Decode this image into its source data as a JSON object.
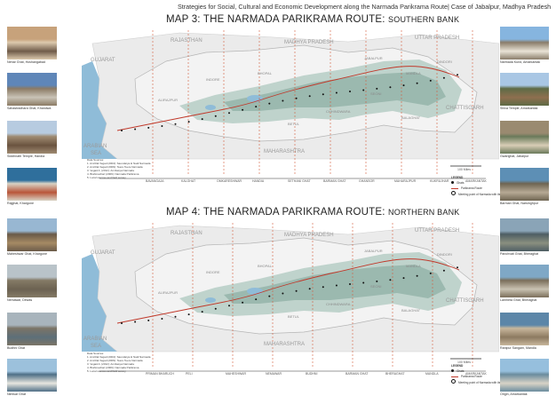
{
  "header": "Strategies for Social, Cultural and Economic Development along the Narmada Parikrama Route| Case of Jabalpur, Madhya Pradesh",
  "maps": [
    {
      "title_main": "MAP 3: THE NARMADA PARIKRAMA ROUTE:",
      "title_sub": "SOUTHERN BANK",
      "states": {
        "rajasthan": "RAJASTHAN",
        "gujarat": "GUJARAT",
        "mp": "MADHYA PRADESH",
        "up": "UTTAR PRADESH",
        "maharashtra": "MAHARASHTRA",
        "chattisgarh": "CHATTISGARH",
        "arabian": "ARABIAN",
        "sea": "SEA"
      },
      "cities": {
        "indore": "INDORE",
        "alirajpur": "ALIRAJPUR",
        "chhindwara": "CHHINDWARA",
        "betul": "BETUL",
        "seoni": "SEONI",
        "balaghat": "BALAGHAT",
        "mandla": "MANDLA",
        "dindori": "DINDORI",
        "bhopal": "BHOPAL",
        "jabalpur": "JABALPUR"
      },
      "ghats": [
        "BAVANGAJA",
        "KALGHAT",
        "OMKARESHWAR",
        "HANDIA",
        "SETHANI GHAT",
        "BARMAN GHAT",
        "GHANSOR",
        "MAHARAJPUR",
        "KUKRUJHAR",
        "AMARKANTAK"
      ],
      "scale": "100 Miles",
      "legend": {
        "title": "LEGEND",
        "ghats": "Ghats",
        "route": "Parikrama Route",
        "meeting": "Meeting point of Narmada with its tributary"
      },
      "notes_title": "Data Sources:",
      "notes": [
        "1. Amritlal Vegad (2004): Saundarya ki Nadi Narmada",
        "2. Amritlal Vegad (2009): Teere Teere Narmada",
        "3. Vegad A. (2012): Amritasya Narmada",
        "4. Brahmachari (2009): Narmada Parikrama",
        "5. Local sources and field survey"
      ]
    },
    {
      "title_main": "MAP 4: THE NARMADA PARIKRAMA ROUTE:",
      "title_sub": "NORTHERN BANK",
      "states": {
        "rajasthan": "RAJASTHAN",
        "gujarat": "GUJARAT",
        "mp": "MADHYA PRADESH",
        "up": "UTTAR PRADESH",
        "maharashtra": "MAHARASHTRA",
        "chattisgarh": "CHATTISGARH",
        "arabian": "ARABIAN",
        "sea": "SEA"
      },
      "cities": {
        "indore": "INDORE",
        "alirajpur": "ALIRAJPUR",
        "chhindwara": "CHHINDWARA",
        "betul": "BETUL",
        "seoni": "SEONI",
        "balaghat": "BALAGHAT",
        "mandla": "MANDLA",
        "dindori": "DINDORI",
        "bhopal": "BHOPAL",
        "jabalpur": "JABALPUR"
      },
      "ghats": [
        "PRIMAN BHARUCH",
        "PELI",
        "MAHESHWAR",
        "NEMAWAR",
        "BUDHNI",
        "BARMAN GHAT",
        "BHERAGHAT",
        "MANDLA",
        "AMARKANTAK"
      ],
      "scale": "100 Miles",
      "legend": {
        "title": "LEGEND",
        "ghats": "Ghats",
        "route": "Parikrama Route",
        "meeting": "Meeting point of Narmada with its tributary"
      },
      "notes_title": "Data Sources:",
      "notes": [
        "1. Amritlal Vegad (2004): Saundarya ki Nadi Narmada",
        "2. Amritlal Vegad (2009): Teere Teere Narmada",
        "3. Vegad A. (2012): Amritasya Narmada",
        "4. Brahmachari (2009): Narmada Parikrama",
        "5. Local sources and field survey"
      ]
    }
  ],
  "photos_left": [
    {
      "caption": "Nehar Ghat, Hoshangabad",
      "colors": [
        "#c7a27b",
        "#6f5b4a",
        "#dcc9ad"
      ]
    },
    {
      "caption": "Sahastradhara Ghat, Khandwa",
      "colors": [
        "#5f86b8",
        "#c9c3b7",
        "#8b7a64"
      ]
    },
    {
      "caption": "Siddhnath Temple, Handia",
      "colors": [
        "#b7cbe0",
        "#6b5440",
        "#9f8b72"
      ]
    },
    {
      "caption": "Rajghat, Khargone",
      "colors": [
        "#2f6f9c",
        "#b9563a",
        "#d8d2c4"
      ]
    },
    {
      "caption": "Maheshwar Ghat, Khargone",
      "colors": [
        "#98b7d2",
        "#a58a64",
        "#6a5a48"
      ]
    },
    {
      "caption": "Nemawar, Dewas",
      "colors": [
        "#b9c3c9",
        "#6c6252",
        "#847a66"
      ]
    },
    {
      "caption": "Budhni Ghat",
      "colors": [
        "#a8b4bc",
        "#5d6f79",
        "#7b7466"
      ]
    },
    {
      "caption": "Nimisar Ghat",
      "colors": [
        "#9cc1dc",
        "#e7e6df",
        "#4f6f86"
      ]
    }
  ],
  "photos_right": [
    {
      "caption": "Narmada Kund, Amarkantak",
      "colors": [
        "#86b5df",
        "#e9e3d6",
        "#8a7d6a"
      ]
    },
    {
      "caption": "Shiva Temple, Amarkantak",
      "colors": [
        "#a9c7e4",
        "#8e6f4f",
        "#5e6b45"
      ]
    },
    {
      "caption": "Gwarighat, Jabalpur",
      "colors": [
        "#9a8a70",
        "#d8cdb6",
        "#6a7a5a"
      ]
    },
    {
      "caption": "Barman Ghat, Narsinghpur",
      "colors": [
        "#5d8fb5",
        "#b6a994",
        "#6f6552"
      ]
    },
    {
      "caption": "Panchvati Ghat, Bheraghat",
      "colors": [
        "#8aa4b7",
        "#8a8f7f",
        "#4d5d63"
      ]
    },
    {
      "caption": "Lamheta Ghat, Bheraghat",
      "colors": [
        "#7fa8c6",
        "#c9c2b2",
        "#7b6e5a"
      ]
    },
    {
      "caption": "Ranipur Sangam, Mandla",
      "colors": [
        "#5c86a8",
        "#8c7a61",
        "#c8b79c"
      ]
    },
    {
      "caption": "Origin, Amarkantak",
      "colors": [
        "#96bfdd",
        "#d8d3c6",
        "#6b8c9e"
      ]
    }
  ],
  "colors": {
    "water": "#8fbcd8",
    "forest": "#8fb0a6",
    "forest_light": "#bfd3cc",
    "state_fill": "#ebebeb",
    "route_red": "#c0392b",
    "dashed_red": "#d35b3a"
  }
}
